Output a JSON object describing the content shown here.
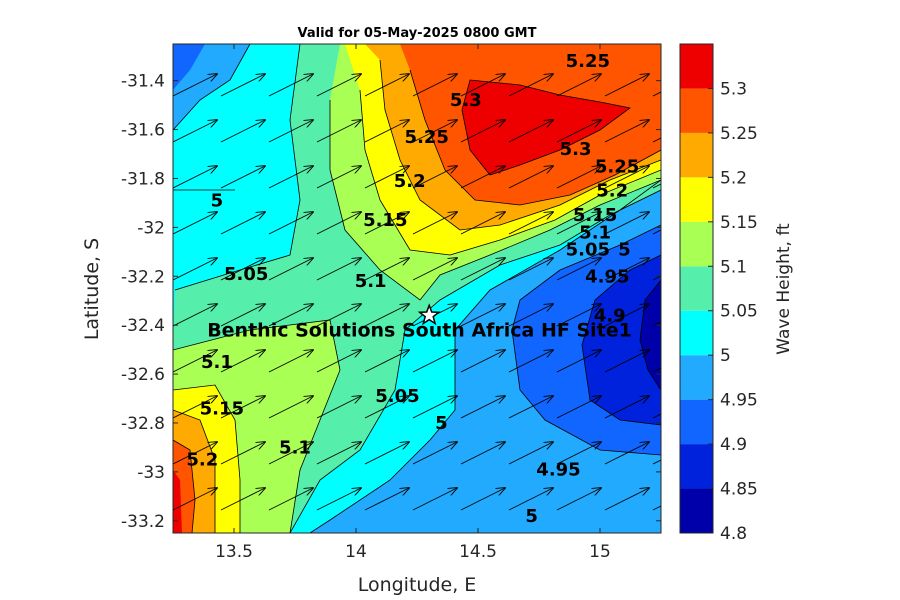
{
  "chart_data": {
    "type": "contour",
    "title": "Valid for 05-May-2025 0800 GMT",
    "xlabel": "Longitude, E",
    "ylabel": "Latitude, S",
    "colorbar_label": "Wave Height, ft",
    "xlim": [
      13.25,
      15.25
    ],
    "ylim": [
      -33.25,
      -31.25
    ],
    "xticks": [
      13.5,
      14,
      14.5,
      15
    ],
    "xtick_labels": [
      "13.5",
      "14",
      "14.5",
      "15"
    ],
    "yticks": [
      -31.4,
      -31.6,
      -31.8,
      -32,
      -32.2,
      -32.4,
      -32.6,
      -32.8,
      -33,
      -33.2
    ],
    "ytick_labels": [
      "-31.4",
      "-31.6",
      "-31.8",
      "-32",
      "-32.2",
      "-32.4",
      "-32.6",
      "-32.8",
      "-33",
      "-33.2"
    ],
    "levels": [
      4.8,
      4.85,
      4.9,
      4.95,
      5,
      5.05,
      5.1,
      5.15,
      5.2,
      5.25,
      5.3
    ],
    "colorbar_ticks": [
      "4.8",
      "4.85",
      "4.9",
      "4.95",
      "5",
      "5.05",
      "5.1",
      "5.15",
      "5.2",
      "5.25",
      "5.3"
    ],
    "colorbar_colors": [
      "#0000aa",
      "#0022dd",
      "#1166ff",
      "#22aaff",
      "#00ffff",
      "#55eeaa",
      "#aaff55",
      "#ffff00",
      "#ffaa00",
      "#ff5500",
      "#ee0000"
    ],
    "grid": false,
    "contour_labels": [
      {
        "text": "5.25",
        "lon": 14.95,
        "lat": -31.32
      },
      {
        "text": "5.3",
        "lon": 14.45,
        "lat": -31.48
      },
      {
        "text": "5.3",
        "lon": 14.9,
        "lat": -31.68
      },
      {
        "text": "5.25",
        "lon": 14.29,
        "lat": -31.63
      },
      {
        "text": "5.25",
        "lon": 15.07,
        "lat": -31.75
      },
      {
        "text": "5.2",
        "lon": 14.22,
        "lat": -31.81
      },
      {
        "text": "5.2",
        "lon": 15.05,
        "lat": -31.85
      },
      {
        "text": "5",
        "lon": 13.43,
        "lat": -31.89
      },
      {
        "text": "5.15",
        "lon": 14.12,
        "lat": -31.97
      },
      {
        "text": "5.15",
        "lon": 14.98,
        "lat": -31.95
      },
      {
        "text": "5.1",
        "lon": 14.98,
        "lat": -32.02
      },
      {
        "text": "5.05",
        "lon": 14.95,
        "lat": -32.09
      },
      {
        "text": "5",
        "lon": 15.1,
        "lat": -32.09
      },
      {
        "text": "5.05",
        "lon": 13.55,
        "lat": -32.19
      },
      {
        "text": "5.1",
        "lon": 14.06,
        "lat": -32.22
      },
      {
        "text": "4.95",
        "lon": 15.03,
        "lat": -32.2
      },
      {
        "text": "4.9",
        "lon": 15.04,
        "lat": -32.36
      },
      {
        "text": "5.1",
        "lon": 13.43,
        "lat": -32.55
      },
      {
        "text": "5.05",
        "lon": 14.17,
        "lat": -32.69
      },
      {
        "text": "5.15",
        "lon": 13.45,
        "lat": -32.74
      },
      {
        "text": "5",
        "lon": 14.35,
        "lat": -32.8
      },
      {
        "text": "5.1",
        "lon": 13.75,
        "lat": -32.9
      },
      {
        "text": "5.2",
        "lon": 13.37,
        "lat": -32.95
      },
      {
        "text": "4.95",
        "lon": 14.83,
        "lat": -32.99
      },
      {
        "text": "5",
        "lon": 14.72,
        "lat": -33.18
      }
    ],
    "marker": {
      "symbol": "star",
      "lon": 14.3,
      "lat": -32.36
    },
    "annotation": "Benthic Solutions South Africa HF Site1"
  }
}
